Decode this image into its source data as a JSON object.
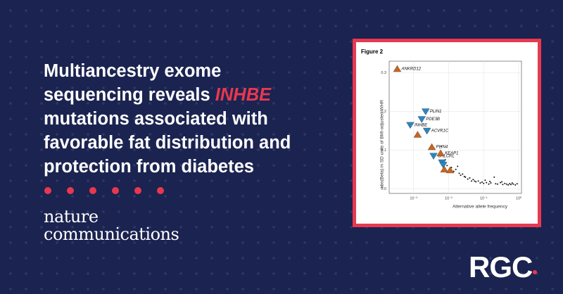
{
  "headline": {
    "lines": [
      "Multiancestry exome",
      [
        "sequencing reveals ",
        "INHBE"
      ],
      "mutations associated with",
      "favorable fat distribution and",
      "protection from diabetes"
    ]
  },
  "journal": [
    "nature",
    "communications"
  ],
  "logo": "RGC",
  "chart_data": {
    "type": "scatter",
    "title": "Figure 2",
    "x_label": "Alternative allele frequency",
    "y_label": "abs(Beta) in SD units of BMI-adjusted WHR",
    "x_scale": "log",
    "grid": true,
    "xlim": [
      0.0002,
      1.2
    ],
    "xticks": [
      {
        "value": 0.001,
        "label": "10⁻³"
      },
      {
        "value": 0.01,
        "label": "10⁻²"
      },
      {
        "value": 0.1,
        "label": "10⁻¹"
      },
      {
        "value": 1,
        "label": "10⁰"
      }
    ],
    "ylim": [
      -0.012,
      0.33
    ],
    "yticks": [
      {
        "value": 0,
        "label": "0.0"
      },
      0.1,
      0.2,
      0.3
    ],
    "series": [
      {
        "color": "#c8651f",
        "marker": "triangle-up",
        "x": [
          0.00034,
          0.0013,
          0.0033,
          0.0059,
          0.0075,
          0.011
        ],
        "values": [
          0.31,
          0.14,
          0.108,
          0.092,
          0.05,
          0.048
        ],
        "labels": [
          "ANKRD12",
          null,
          "PLIN4",
          "KEAP1",
          null,
          null
        ]
      },
      {
        "color": "#2a86c0",
        "marker": "triangle-down",
        "x": [
          0.0022,
          0.0017,
          0.0008,
          0.0024,
          0.0037,
          0.0065,
          0.007
        ],
        "values": [
          0.2,
          0.18,
          0.165,
          0.15,
          0.085,
          0.068,
          0.062
        ],
        "labels": [
          "PLIN1",
          "PDE3B",
          "INHBE",
          "ACVR1C",
          "CALCRL",
          null,
          null
        ]
      },
      {
        "color": "#111111",
        "marker": "dot",
        "x": [
          0.006,
          0.008,
          0.009,
          0.012,
          0.014,
          0.016,
          0.02,
          0.022,
          0.025,
          0.03,
          0.035,
          0.04,
          0.045,
          0.05,
          0.06,
          0.07,
          0.08,
          0.09,
          0.1,
          0.12,
          0.14,
          0.16,
          0.2,
          0.22,
          0.25,
          0.3,
          0.35,
          0.4,
          0.45,
          0.5,
          0.55,
          0.6,
          0.7,
          0.8,
          0.9,
          0.018,
          0.028,
          0.055,
          0.11,
          0.15,
          0.33,
          0.65
        ],
        "values": [
          0.11,
          0.075,
          0.06,
          0.055,
          0.045,
          0.05,
          0.04,
          0.035,
          0.038,
          0.03,
          0.025,
          0.028,
          0.02,
          0.024,
          0.018,
          0.02,
          0.015,
          0.017,
          0.014,
          0.016,
          0.012,
          0.015,
          0.03,
          0.013,
          0.012,
          0.016,
          0.011,
          0.014,
          0.012,
          0.01,
          0.013,
          0.011,
          0.012,
          0.01,
          0.013,
          0.058,
          0.032,
          0.02,
          0.022,
          0.019,
          0.018,
          0.015
        ],
        "labels": [
          null,
          null,
          null,
          null,
          null,
          null,
          null,
          null,
          null,
          null,
          null,
          null,
          null,
          null,
          null,
          null,
          null,
          null,
          null,
          null,
          null,
          null,
          null,
          null,
          null,
          null,
          null,
          null,
          null,
          null,
          null,
          null,
          null,
          null,
          null,
          null,
          null,
          null,
          null,
          null,
          null,
          null
        ]
      }
    ]
  }
}
